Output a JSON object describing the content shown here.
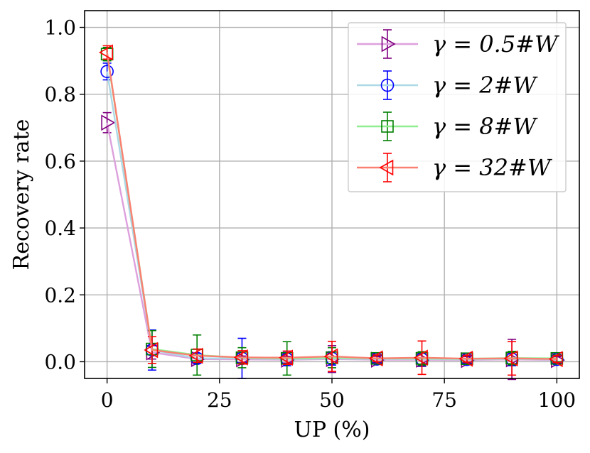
{
  "chart_data": {
    "type": "line",
    "xlabel": "UP (%)",
    "ylabel": "Recovery rate",
    "xlim": [
      -5,
      105
    ],
    "ylim": [
      -0.05,
      1.05
    ],
    "xticks": [
      0,
      25,
      50,
      75,
      100
    ],
    "yticks": [
      0.0,
      0.2,
      0.4,
      0.6,
      0.8,
      1.0
    ],
    "xtick_labels": [
      "0",
      "25",
      "50",
      "75",
      "100"
    ],
    "ytick_labels": [
      "0.0",
      "0.2",
      "0.4",
      "0.6",
      "0.8",
      "1.0"
    ],
    "grid": true,
    "legend_position": "top-right",
    "x": [
      0,
      10,
      20,
      30,
      40,
      50,
      60,
      70,
      80,
      90,
      100
    ],
    "series": [
      {
        "name": "γ = 0.5#W",
        "marker": "triangle-right",
        "line_color": "#dda0dd",
        "marker_color": "#800080",
        "values": [
          0.715,
          0.028,
          0.008,
          0.007,
          0.006,
          0.008,
          0.006,
          0.006,
          0.005,
          0.007,
          0.005
        ],
        "err": [
          0.03,
          0.02,
          0.01,
          0.01,
          0.01,
          0.04,
          0.01,
          0.02,
          0.01,
          0.06,
          0.01
        ]
      },
      {
        "name": "γ = 2#W",
        "marker": "circle",
        "line_color": "#add8e6",
        "marker_color": "#0000ff",
        "values": [
          0.868,
          0.035,
          0.01,
          0.01,
          0.008,
          0.01,
          0.008,
          0.008,
          0.007,
          0.008,
          0.007
        ],
        "err": [
          0.025,
          0.06,
          0.015,
          0.06,
          0.02,
          0.02,
          0.01,
          0.02,
          0.01,
          0.02,
          0.01
        ]
      },
      {
        "name": "γ = 8#W",
        "marker": "square",
        "line_color": "#90ee90",
        "marker_color": "#008000",
        "values": [
          0.92,
          0.038,
          0.02,
          0.012,
          0.01,
          0.012,
          0.01,
          0.01,
          0.009,
          0.011,
          0.01
        ],
        "err": [
          0.02,
          0.055,
          0.06,
          0.03,
          0.05,
          0.03,
          0.01,
          0.02,
          0.01,
          0.02,
          0.01
        ]
      },
      {
        "name": "γ = 32#W",
        "marker": "triangle-left",
        "line_color": "#fa8072",
        "marker_color": "#ff0000",
        "values": [
          0.925,
          0.035,
          0.018,
          0.013,
          0.012,
          0.016,
          0.01,
          0.012,
          0.009,
          0.01,
          0.008
        ],
        "err": [
          0.02,
          0.04,
          0.02,
          0.02,
          0.02,
          0.045,
          0.01,
          0.05,
          0.01,
          0.05,
          0.01
        ]
      }
    ]
  },
  "legend_color_meaning": {
    "line": "light tint of series color",
    "marker": "dark series color, hollow"
  }
}
